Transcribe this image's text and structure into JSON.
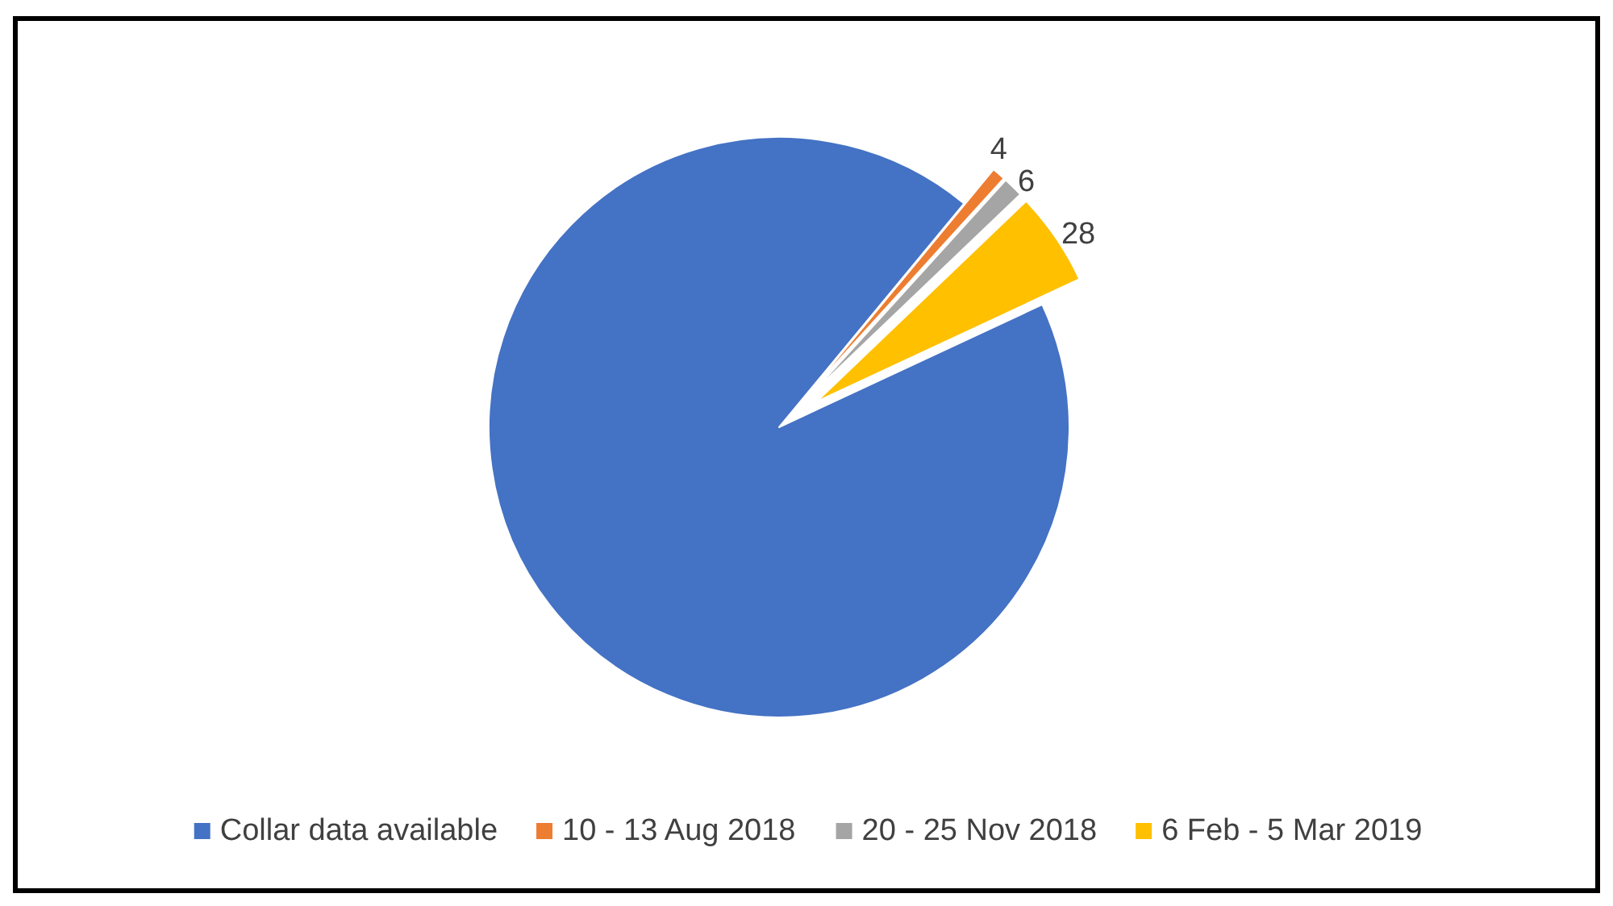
{
  "chart_data": {
    "type": "pie",
    "categories": [
      "Collar data available",
      "10 - 13 Aug 2018",
      "20 - 25 Nov 2018",
      "6 Feb - 5 Mar 2019"
    ],
    "values": [
      500,
      4,
      6,
      28
    ],
    "colors": [
      "#4472c4",
      "#ed7d31",
      "#a5a5a5",
      "#ffc000"
    ],
    "value_labels": [
      null,
      "4",
      "6",
      "28"
    ],
    "legend": "bottom"
  }
}
